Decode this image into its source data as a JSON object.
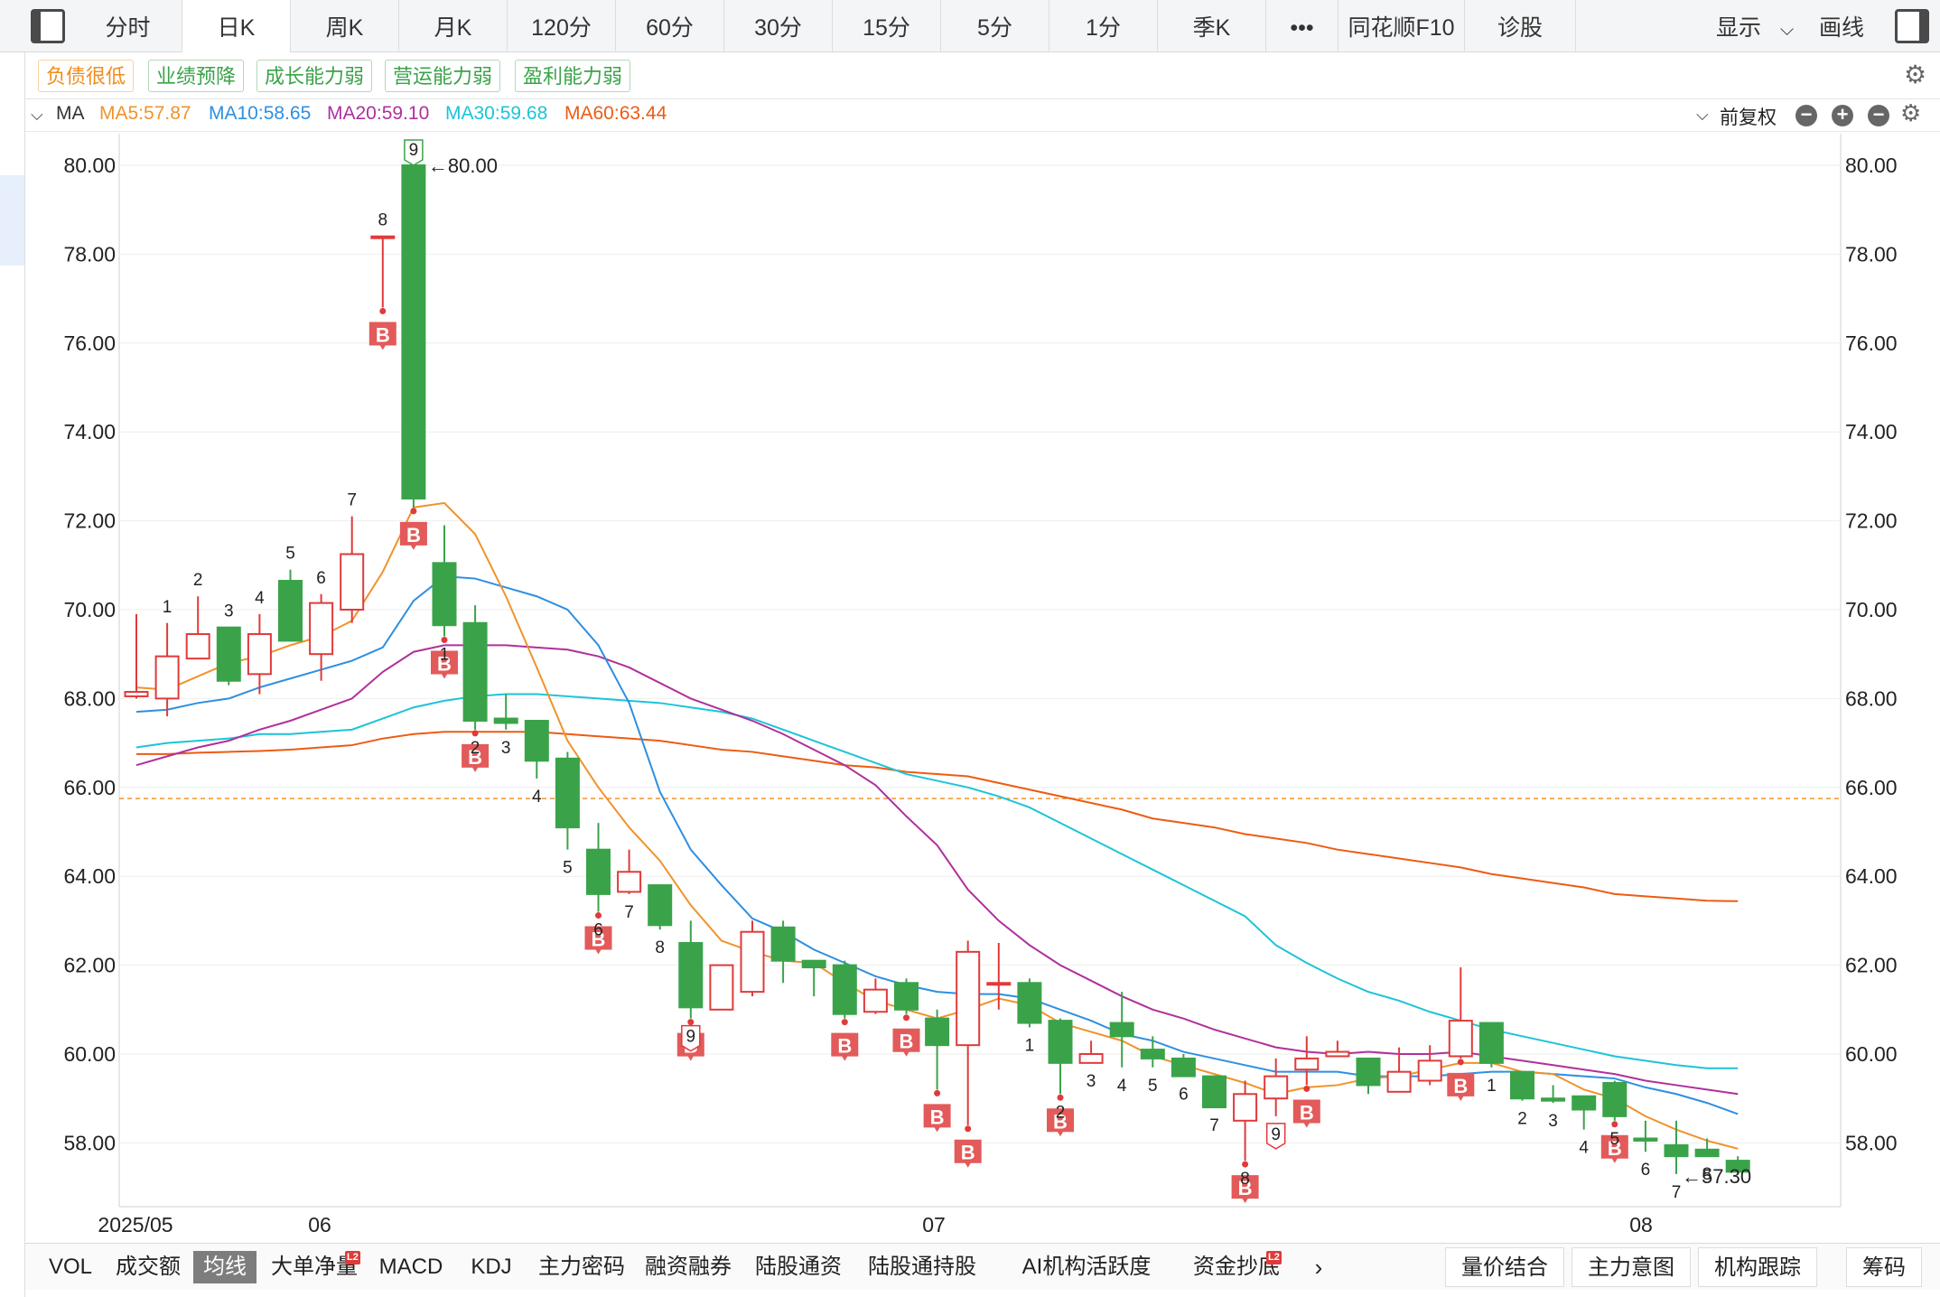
{
  "period_tabs": [
    "分时",
    "日K",
    "周K",
    "月K",
    "120分",
    "60分",
    "30分",
    "15分",
    "5分",
    "1分",
    "季K",
    "•••",
    "同花顺F10",
    "诊股"
  ],
  "active_tab": "日K",
  "top_right": {
    "display": "显示",
    "draw": "画线"
  },
  "tags": [
    {
      "label": "负债很低",
      "color": "#f08c1c"
    },
    {
      "label": "业绩预降",
      "color": "#3aa34a"
    },
    {
      "label": "成长能力弱",
      "color": "#3aa34a"
    },
    {
      "label": "营运能力弱",
      "color": "#3aa34a"
    },
    {
      "label": "盈利能力弱",
      "color": "#3aa34a"
    }
  ],
  "ma_bar": {
    "label": "MA",
    "ma5": "MA5:57.87",
    "ma10": "MA10:58.65",
    "ma20": "MA20:59.10",
    "ma30": "MA30:59.68",
    "ma60": "MA60:63.44",
    "adjust": "前复权"
  },
  "indicators": [
    "VOL",
    "成交额",
    "均线",
    "大单净量",
    "MACD",
    "KDJ",
    "主力密码",
    "融资融券",
    "陆股通资金",
    "陆股通持股",
    "AI机构活跃度",
    "资金抄底"
  ],
  "active_indicator": "均线",
  "l2_badge": "L2",
  "right_buttons": [
    "量价结合",
    "主力意图",
    "机构跟踪",
    "筹码"
  ],
  "colors": {
    "up": "#e03a3a",
    "down": "#3aa34a",
    "ma5": "#f0932b",
    "ma10": "#2e8fe0",
    "ma20": "#b0309c",
    "ma30": "#1cc4d8",
    "ma60": "#ee5b12"
  },
  "chart_data": {
    "type": "candlestick",
    "ylim": [
      56.8,
      81.3
    ],
    "yticks": [
      "80.00",
      "78.00",
      "76.00",
      "74.00",
      "72.00",
      "70.00",
      "68.00",
      "66.00",
      "64.00",
      "62.00",
      "60.00",
      "58.00"
    ],
    "xlabels": [
      "2025/05",
      "06",
      "07",
      "08"
    ],
    "high_label": "80.00",
    "low_label": "57.30",
    "ref_line": 65.75,
    "candles": [
      {
        "o": 68.05,
        "c": 68.15,
        "h": 69.9,
        "l": 68.0
      },
      {
        "o": 68.0,
        "c": 68.95,
        "h": 69.7,
        "l": 67.6
      },
      {
        "o": 68.9,
        "c": 69.45,
        "h": 70.3,
        "l": 68.9
      },
      {
        "o": 69.6,
        "c": 68.4,
        "h": 69.6,
        "l": 68.3
      },
      {
        "o": 68.55,
        "c": 69.45,
        "h": 69.9,
        "l": 68.1
      },
      {
        "o": 70.65,
        "c": 69.3,
        "h": 70.9,
        "l": 69.3
      },
      {
        "o": 69.0,
        "c": 70.15,
        "h": 70.35,
        "l": 68.4
      },
      {
        "o": 70.0,
        "c": 71.25,
        "h": 72.1,
        "l": 69.7
      },
      {
        "o": 78.4,
        "c": 78.4,
        "h": 78.4,
        "l": 76.8
      },
      {
        "o": 80.0,
        "c": 72.5,
        "h": 80.0,
        "l": 72.3
      },
      {
        "o": 71.05,
        "c": 69.65,
        "h": 71.9,
        "l": 69.4
      },
      {
        "o": 69.7,
        "c": 67.5,
        "h": 70.1,
        "l": 67.3
      },
      {
        "o": 67.55,
        "c": 67.45,
        "h": 68.1,
        "l": 67.3
      },
      {
        "o": 67.5,
        "c": 66.6,
        "h": 67.5,
        "l": 66.2
      },
      {
        "o": 66.65,
        "c": 65.1,
        "h": 66.8,
        "l": 64.6
      },
      {
        "o": 64.6,
        "c": 63.6,
        "h": 65.2,
        "l": 63.2
      },
      {
        "o": 63.65,
        "c": 64.1,
        "h": 64.6,
        "l": 63.6
      },
      {
        "o": 63.8,
        "c": 62.9,
        "h": 63.8,
        "l": 62.8
      },
      {
        "o": 62.5,
        "c": 61.05,
        "h": 63.0,
        "l": 60.8
      },
      {
        "o": 61.0,
        "c": 62.0,
        "h": 62.0,
        "l": 61.0
      },
      {
        "o": 61.4,
        "c": 62.75,
        "h": 63.0,
        "l": 61.3
      },
      {
        "o": 62.85,
        "c": 62.1,
        "h": 63.0,
        "l": 61.6
      },
      {
        "o": 62.1,
        "c": 61.95,
        "h": 62.1,
        "l": 61.3
      },
      {
        "o": 62.0,
        "c": 60.9,
        "h": 62.1,
        "l": 60.8
      },
      {
        "o": 60.95,
        "c": 61.45,
        "h": 61.7,
        "l": 60.9
      },
      {
        "o": 61.6,
        "c": 61.0,
        "h": 61.7,
        "l": 60.9
      },
      {
        "o": 60.8,
        "c": 60.2,
        "h": 61.0,
        "l": 59.2
      },
      {
        "o": 60.2,
        "c": 62.3,
        "h": 62.55,
        "l": 58.4
      },
      {
        "o": 61.6,
        "c": 61.6,
        "h": 62.5,
        "l": 61.0
      },
      {
        "o": 61.6,
        "c": 60.7,
        "h": 61.7,
        "l": 60.6
      },
      {
        "o": 60.75,
        "c": 59.8,
        "h": 60.8,
        "l": 59.1
      },
      {
        "o": 59.8,
        "c": 60.0,
        "h": 60.3,
        "l": 59.8
      },
      {
        "o": 60.7,
        "c": 60.4,
        "h": 61.4,
        "l": 59.7
      },
      {
        "o": 60.1,
        "c": 59.9,
        "h": 60.4,
        "l": 59.7
      },
      {
        "o": 59.9,
        "c": 59.5,
        "h": 60.0,
        "l": 59.5
      },
      {
        "o": 59.5,
        "c": 58.8,
        "h": 59.5,
        "l": 58.8
      },
      {
        "o": 58.5,
        "c": 59.1,
        "h": 59.4,
        "l": 57.6
      },
      {
        "o": 59.0,
        "c": 59.5,
        "h": 59.9,
        "l": 58.6
      },
      {
        "o": 59.65,
        "c": 59.9,
        "h": 60.4,
        "l": 59.3
      },
      {
        "o": 59.95,
        "c": 60.05,
        "h": 60.3,
        "l": 59.95
      },
      {
        "o": 59.9,
        "c": 59.3,
        "h": 59.9,
        "l": 59.1
      },
      {
        "o": 59.15,
        "c": 59.6,
        "h": 60.15,
        "l": 59.15
      },
      {
        "o": 59.4,
        "c": 59.85,
        "h": 60.2,
        "l": 59.3
      },
      {
        "o": 59.95,
        "c": 60.75,
        "h": 61.95,
        "l": 59.9
      },
      {
        "o": 60.7,
        "c": 59.8,
        "h": 60.7,
        "l": 59.7
      },
      {
        "o": 59.6,
        "c": 59.0,
        "h": 59.6,
        "l": 58.95
      },
      {
        "o": 59.0,
        "c": 58.95,
        "h": 59.3,
        "l": 58.9
      },
      {
        "o": 59.05,
        "c": 58.75,
        "h": 59.05,
        "l": 58.3
      },
      {
        "o": 59.35,
        "c": 58.6,
        "h": 59.4,
        "l": 58.5
      },
      {
        "o": 58.1,
        "c": 58.05,
        "h": 58.5,
        "l": 57.8
      },
      {
        "o": 57.95,
        "c": 57.7,
        "h": 58.5,
        "l": 57.3
      },
      {
        "o": 57.85,
        "c": 57.7,
        "h": 58.1,
        "l": 57.7
      },
      {
        "o": 57.6,
        "c": 57.35,
        "h": 57.7,
        "l": 57.3
      }
    ],
    "ma5": [
      68.25,
      68.2,
      68.5,
      68.8,
      68.95,
      69.2,
      69.4,
      69.75,
      70.85,
      72.3,
      72.4,
      71.7,
      70.3,
      68.7,
      67.05,
      66.0,
      65.1,
      64.35,
      63.35,
      62.55,
      62.3,
      62.1,
      62.05,
      61.6,
      61.2,
      61.0,
      60.8,
      61.0,
      61.25,
      61.1,
      60.7,
      60.5,
      60.3,
      59.95,
      59.75,
      59.55,
      59.35,
      59.1,
      59.25,
      59.3,
      59.45,
      59.5,
      59.65,
      59.8,
      59.8,
      59.6,
      59.55,
      59.2,
      59.0,
      58.6,
      58.3,
      58.05,
      57.87
    ],
    "ma10": [
      67.7,
      67.75,
      67.9,
      68.0,
      68.25,
      68.45,
      68.65,
      68.85,
      69.15,
      70.2,
      70.75,
      70.7,
      70.5,
      70.3,
      70.0,
      69.2,
      67.9,
      65.9,
      64.6,
      63.8,
      63.05,
      62.75,
      62.35,
      62.05,
      61.75,
      61.55,
      61.4,
      61.35,
      61.35,
      61.25,
      61.0,
      60.75,
      60.45,
      60.3,
      60.05,
      59.9,
      59.75,
      59.6,
      59.6,
      59.6,
      59.5,
      59.5,
      59.5,
      59.55,
      59.6,
      59.6,
      59.55,
      59.5,
      59.45,
      59.25,
      59.1,
      58.9,
      58.65
    ],
    "ma20": [
      66.5,
      66.7,
      66.9,
      67.05,
      67.3,
      67.5,
      67.75,
      68.0,
      68.6,
      69.05,
      69.2,
      69.2,
      69.2,
      69.15,
      69.1,
      68.95,
      68.7,
      68.35,
      68.0,
      67.75,
      67.5,
      67.2,
      66.85,
      66.5,
      66.05,
      65.35,
      64.7,
      63.7,
      63.0,
      62.45,
      62.0,
      61.65,
      61.3,
      61.0,
      60.8,
      60.55,
      60.35,
      60.15,
      60.05,
      60.0,
      60.05,
      60.0,
      60.0,
      60.05,
      59.95,
      59.85,
      59.75,
      59.65,
      59.55,
      59.4,
      59.3,
      59.2,
      59.1
    ],
    "ma30": [
      66.9,
      67.0,
      67.05,
      67.1,
      67.2,
      67.2,
      67.25,
      67.3,
      67.55,
      67.8,
      67.95,
      68.05,
      68.1,
      68.1,
      68.05,
      68.0,
      67.95,
      67.9,
      67.8,
      67.7,
      67.55,
      67.3,
      67.05,
      66.8,
      66.55,
      66.3,
      66.15,
      66.0,
      65.8,
      65.55,
      65.2,
      64.85,
      64.5,
      64.15,
      63.8,
      63.45,
      63.1,
      62.45,
      62.05,
      61.7,
      61.4,
      61.2,
      60.95,
      60.75,
      60.55,
      60.4,
      60.25,
      60.1,
      59.95,
      59.85,
      59.75,
      59.68,
      59.68
    ],
    "ma60": [
      66.75,
      66.75,
      66.78,
      66.8,
      66.82,
      66.85,
      66.9,
      66.95,
      67.1,
      67.2,
      67.25,
      67.25,
      67.25,
      67.25,
      67.2,
      67.15,
      67.1,
      67.05,
      66.95,
      66.85,
      66.8,
      66.7,
      66.6,
      66.5,
      66.45,
      66.35,
      66.3,
      66.25,
      66.1,
      65.95,
      65.8,
      65.65,
      65.5,
      65.3,
      65.2,
      65.1,
      64.95,
      64.85,
      64.75,
      64.6,
      64.5,
      64.4,
      64.3,
      64.2,
      64.05,
      63.95,
      63.85,
      63.75,
      63.6,
      63.55,
      63.5,
      63.45,
      63.44
    ],
    "b_markers": [
      8,
      9,
      10,
      11,
      15,
      18,
      23,
      25,
      26,
      27,
      30,
      36,
      38,
      43,
      48
    ],
    "count_labels": [
      {
        "i": 1,
        "t": "1",
        "pos": "above"
      },
      {
        "i": 2,
        "t": "2",
        "pos": "above"
      },
      {
        "i": 3,
        "t": "3",
        "pos": "above"
      },
      {
        "i": 4,
        "t": "4",
        "pos": "above"
      },
      {
        "i": 5,
        "t": "5",
        "pos": "above"
      },
      {
        "i": 6,
        "t": "6",
        "pos": "above"
      },
      {
        "i": 7,
        "t": "7",
        "pos": "above"
      },
      {
        "i": 8,
        "t": "8",
        "pos": "above"
      },
      {
        "i": 9,
        "t": "9",
        "pos": "top-tag"
      },
      {
        "i": 10,
        "t": "1",
        "pos": "below"
      },
      {
        "i": 11,
        "t": "2",
        "pos": "below"
      },
      {
        "i": 12,
        "t": "3",
        "pos": "below"
      },
      {
        "i": 13,
        "t": "4",
        "pos": "below"
      },
      {
        "i": 14,
        "t": "5",
        "pos": "below"
      },
      {
        "i": 15,
        "t": "6",
        "pos": "below"
      },
      {
        "i": 16,
        "t": "7",
        "pos": "below"
      },
      {
        "i": 17,
        "t": "8",
        "pos": "below"
      },
      {
        "i": 18,
        "t": "9",
        "pos": "bottom-tag"
      },
      {
        "i": 29,
        "t": "1",
        "pos": "below"
      },
      {
        "i": 30,
        "t": "2",
        "pos": "below"
      },
      {
        "i": 31,
        "t": "3",
        "pos": "below"
      },
      {
        "i": 32,
        "t": "4",
        "pos": "below"
      },
      {
        "i": 33,
        "t": "5",
        "pos": "below"
      },
      {
        "i": 34,
        "t": "6",
        "pos": "below"
      },
      {
        "i": 35,
        "t": "7",
        "pos": "below"
      },
      {
        "i": 36,
        "t": "8",
        "pos": "below"
      },
      {
        "i": 37,
        "t": "9",
        "pos": "bottom-tag"
      },
      {
        "i": 44,
        "t": "1",
        "pos": "below"
      },
      {
        "i": 45,
        "t": "2",
        "pos": "below"
      },
      {
        "i": 46,
        "t": "3",
        "pos": "below"
      },
      {
        "i": 47,
        "t": "4",
        "pos": "below"
      },
      {
        "i": 48,
        "t": "5",
        "pos": "below"
      },
      {
        "i": 49,
        "t": "6",
        "pos": "below"
      },
      {
        "i": 50,
        "t": "7",
        "pos": "below"
      },
      {
        "i": 51,
        "t": "8",
        "pos": "below"
      }
    ]
  }
}
